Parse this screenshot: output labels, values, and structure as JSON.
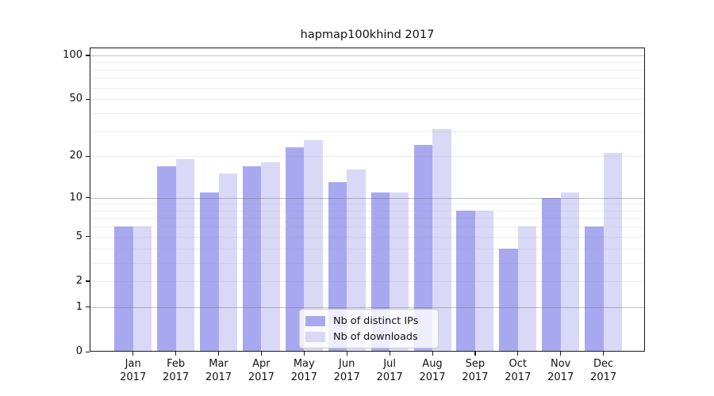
{
  "chart_data": {
    "type": "bar",
    "title": "hapmap100khind 2017",
    "categories": [
      "Jan 2017",
      "Feb 2017",
      "Mar 2017",
      "Apr 2017",
      "May 2017",
      "Jun 2017",
      "Jul 2017",
      "Aug 2017",
      "Sep 2017",
      "Oct 2017",
      "Nov 2017",
      "Dec 2017"
    ],
    "series": [
      {
        "name": "Nb of distinct IPs",
        "color": "#a8a8f0",
        "values": [
          6,
          17,
          11,
          17,
          23,
          13,
          11,
          24,
          8,
          4,
          10,
          6
        ]
      },
      {
        "name": "Nb of downloads",
        "color": "#d9d9f7",
        "values": [
          6,
          19,
          15,
          18,
          26,
          16,
          11,
          31,
          8,
          6,
          11,
          21
        ]
      }
    ],
    "xlabel": "",
    "ylabel": "",
    "y_axis": {
      "scale": "log1p",
      "tick_values": [
        100,
        50,
        20,
        10,
        5,
        2,
        1,
        0
      ],
      "tick_labels": [
        "100",
        "50",
        "20",
        "10",
        "5",
        "2",
        "1",
        "0"
      ],
      "major_grid_values": [
        1,
        10,
        100
      ],
      "minor_grid_values": [
        2,
        3,
        4,
        5,
        6,
        7,
        8,
        9,
        20,
        30,
        40,
        50,
        60,
        70,
        80,
        90
      ],
      "top_value": 113,
      "ylim": [
        0,
        113
      ]
    },
    "grid": true,
    "legend_position": "lower center",
    "bar_colors": {
      "distinct_ips": "#a8a8f0",
      "downloads": "#d9d9f7"
    }
  }
}
